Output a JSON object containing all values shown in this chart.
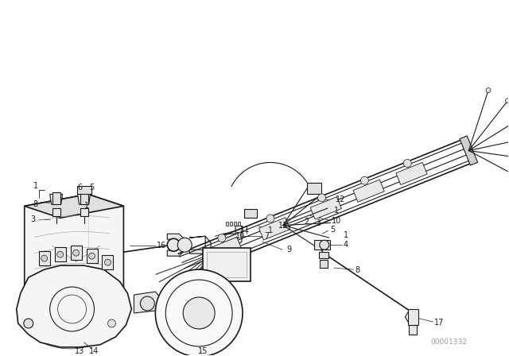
{
  "background_color": "#ffffff",
  "line_color": "#1a1a1a",
  "watermark": "00001332",
  "fig_w": 6.4,
  "fig_h": 4.48,
  "dpi": 100
}
